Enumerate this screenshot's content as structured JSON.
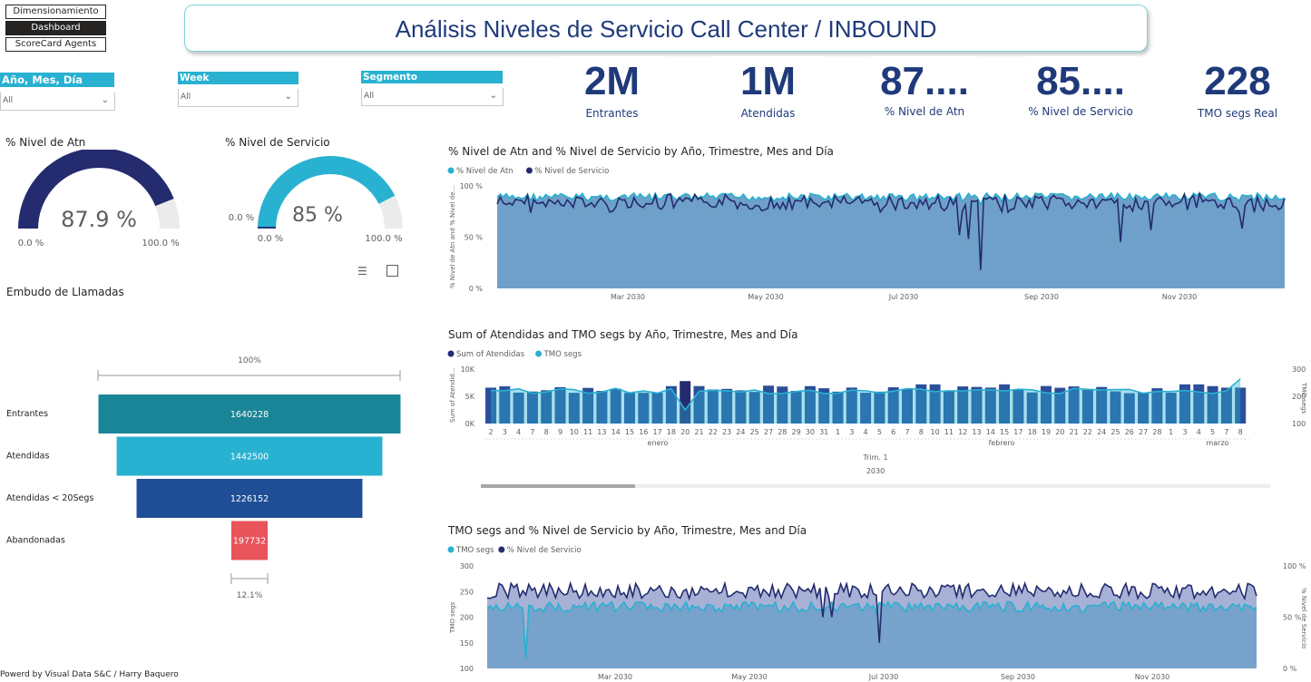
{
  "nav": {
    "dimensionamiento": "Dimensionamiento",
    "dashboard": "Dashboard",
    "scorecard": "ScoreCard Agents"
  },
  "header": {
    "title": "Análisis Niveles de Servicio Call Center / INBOUND"
  },
  "slicers": [
    {
      "label": "Año, Mes, Día",
      "value": "All"
    },
    {
      "label": "Week",
      "value": "All"
    },
    {
      "label": "Segmento",
      "value": "All"
    }
  ],
  "cards": [
    {
      "value": "2M",
      "label": "Entrantes"
    },
    {
      "value": "1M",
      "label": "Atendidas"
    },
    {
      "value": "87....",
      "label": "% Nivel de Atn"
    },
    {
      "value": "85....",
      "label": "% Nivel de Servicio"
    },
    {
      "value": "228",
      "label": "TMO segs Real"
    }
  ],
  "gauges": {
    "atn": {
      "title": "% Nivel de Atn",
      "value_text": "87.9 %",
      "value": 0.879,
      "min": "0.0 %",
      "max": "100.0 %",
      "color": "#252b6f"
    },
    "servicio": {
      "title": "% Nivel de Servicio",
      "value_text": "85 %",
      "value": 0.85,
      "min": "0.0 %",
      "max": "100.0 %",
      "target": "0.0 %",
      "color": "#29b1d1"
    }
  },
  "funnel": {
    "title": "Embudo de Llamadas",
    "top_pct": "100%",
    "bottom_pct": "12.1%",
    "stages": [
      {
        "label": "Entrantes",
        "value": 1640228,
        "value_text": "1640228",
        "color": "#1a8596"
      },
      {
        "label": "Atendidas",
        "value": 1442500,
        "value_text": "1442500",
        "color": "#29b1d1"
      },
      {
        "label": "Atendidas < 20Segs",
        "value": 1226152,
        "value_text": "1226152",
        "color": "#1f4e96"
      },
      {
        "label": "Abandonadas",
        "value": 197732,
        "value_text": "197732",
        "color": "#e9535a"
      }
    ]
  },
  "chart1": {
    "title": "% Nivel de Atn and % Nivel de Servicio by Año, Trimestre, Mes and Día",
    "legend": [
      "% Nivel de Atn",
      "% Nivel de Servicio"
    ],
    "ylabel": "% Nivel de Atn and % Nivel de...",
    "yticks": [
      "100 %",
      "50 %",
      "0 %"
    ],
    "xticks": [
      "Mar 2030",
      "May 2030",
      "Jul 2030",
      "Sep 2030",
      "Nov 2030"
    ]
  },
  "chart2": {
    "title": "Sum of Atendidas and TMO segs by Año, Trimestre, Mes and Día",
    "legend": [
      "Sum of Atendidas",
      "TMO segs"
    ],
    "ylabel": "Sum of Atendid...",
    "ylabel_right": "TMO segs",
    "yticks": [
      "10K",
      "5K",
      "0K"
    ],
    "yticks_right": [
      "300",
      "200",
      "100"
    ],
    "days": [
      "2",
      "3",
      "4",
      "7",
      "8",
      "9",
      "10",
      "11",
      "13",
      "14",
      "15",
      "16",
      "17",
      "18",
      "20",
      "21",
      "22",
      "23",
      "24",
      "25",
      "27",
      "28",
      "29",
      "30",
      "31",
      "1",
      "3",
      "4",
      "5",
      "6",
      "7",
      "8",
      "10",
      "11",
      "12",
      "13",
      "14",
      "15",
      "17",
      "18",
      "19",
      "20",
      "21",
      "22",
      "24",
      "25",
      "26",
      "27",
      "28",
      "1",
      "3",
      "4",
      "5",
      "7",
      "8"
    ],
    "months": [
      "enero",
      "febrero",
      "marzo"
    ],
    "quarter": "Trim. 1",
    "year": "2030"
  },
  "chart3": {
    "title": "TMO segs and % Nivel de Servicio by Año, Trimestre, Mes and Día",
    "legend": [
      "TMO segs",
      "% Nivel de Servicio"
    ],
    "ylabel": "TMO segs",
    "ylabel_right": "% Nivel de Servicio",
    "yticks": [
      "300",
      "250",
      "200",
      "150",
      "100"
    ],
    "yticks_right": [
      "100 %",
      "50 %",
      "0 %"
    ],
    "xticks": [
      "Mar 2030",
      "May 2030",
      "Jul 2030",
      "Sep 2030",
      "Nov 2030"
    ]
  },
  "footer": "Powerd by Visual Data S&C / Harry Baquero",
  "colors": {
    "dark": "#252b6f",
    "light": "#29b1d1",
    "area": "#6fa0c9",
    "title": "#1f3a7a"
  }
}
